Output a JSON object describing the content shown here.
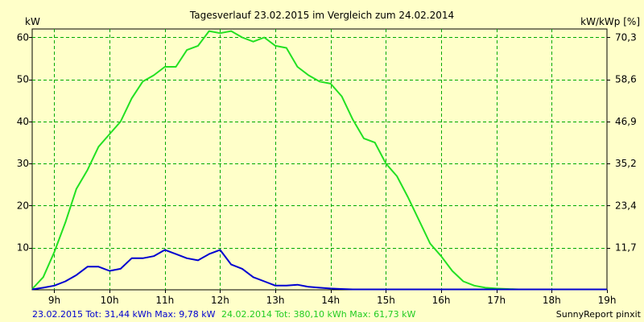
{
  "chart_data": {
    "type": "line",
    "title": "Tagesverlauf 23.02.2015 im Vergleich zum 24.02.2014",
    "ylabel_left": "kW",
    "ylabel_right": "kW/kWp [%]",
    "xlim": [
      8.6,
      19.0
    ],
    "ylim": [
      0,
      62
    ],
    "x_ticks": [
      9,
      10,
      11,
      12,
      13,
      14,
      15,
      16,
      17,
      18,
      19
    ],
    "x_tick_labels": [
      "9h",
      "10h",
      "11h",
      "12h",
      "13h",
      "14h",
      "15h",
      "16h",
      "17h",
      "18h",
      "19h"
    ],
    "y_ticks_left": [
      10,
      20,
      30,
      40,
      50,
      60
    ],
    "y_tick_labels_left": [
      "10",
      "20",
      "30",
      "40",
      "50",
      "60"
    ],
    "y_ticks_right_positions": [
      10,
      20,
      30,
      40,
      50,
      60
    ],
    "y_tick_labels_right": [
      "11,7",
      "23,4",
      "35,2",
      "46,9",
      "58,6",
      "70,3"
    ],
    "grid": true,
    "series": [
      {
        "name": "24.02.2014",
        "color": "#22e022",
        "x": [
          8.6,
          8.8,
          9.0,
          9.2,
          9.4,
          9.6,
          9.8,
          10.0,
          10.2,
          10.4,
          10.6,
          10.8,
          11.0,
          11.2,
          11.4,
          11.6,
          11.8,
          12.0,
          12.2,
          12.4,
          12.6,
          12.8,
          13.0,
          13.2,
          13.4,
          13.6,
          13.8,
          14.0,
          14.2,
          14.4,
          14.6,
          14.8,
          15.0,
          15.2,
          15.4,
          15.6,
          15.8,
          16.0,
          16.2,
          16.4,
          16.6,
          16.8,
          17.0,
          17.2,
          17.4,
          17.6,
          17.8,
          18.0,
          18.2,
          18.4,
          18.6,
          18.8,
          19.0
        ],
        "values": [
          0.2,
          3,
          9,
          16,
          24,
          28.5,
          34,
          37,
          40,
          45.5,
          49.5,
          51,
          53,
          53,
          57,
          58,
          61.5,
          61,
          61.5,
          60,
          59,
          60,
          58,
          57.5,
          53,
          51,
          49.5,
          49,
          46,
          40.5,
          36,
          35,
          30,
          27,
          22,
          16.5,
          11,
          8,
          4.5,
          2,
          1,
          0.5,
          0.3,
          0.2,
          0.1,
          0.1,
          0.1,
          0.1,
          0.1,
          0.1,
          0.1,
          0.1,
          0.1
        ]
      },
      {
        "name": "23.02.2015",
        "color": "#0000d0",
        "x": [
          8.6,
          8.8,
          9.0,
          9.2,
          9.4,
          9.6,
          9.8,
          10.0,
          10.2,
          10.4,
          10.6,
          10.8,
          11.0,
          11.2,
          11.4,
          11.6,
          11.8,
          12.0,
          12.2,
          12.4,
          12.6,
          12.8,
          13.0,
          13.2,
          13.4,
          13.6,
          13.8,
          14.0,
          14.2,
          14.4,
          14.6,
          14.8,
          15.0,
          15.2,
          15.4,
          15.6,
          15.8,
          16.0,
          16.2,
          16.4,
          16.6,
          16.8,
          17.0,
          17.2,
          17.4,
          17.6,
          17.8,
          18.0,
          18.2,
          18.4,
          18.6,
          18.8,
          19.0
        ],
        "values": [
          0.1,
          0.5,
          1,
          2,
          3.5,
          5.5,
          5.5,
          4.5,
          5,
          7.5,
          7.5,
          8,
          9.5,
          8.5,
          7.5,
          7,
          8.5,
          9.5,
          6,
          5,
          3,
          2,
          1,
          1,
          1.2,
          0.7,
          0.5,
          0.3,
          0.2,
          0.1,
          0.1,
          0.1,
          0.1,
          0.1,
          0.1,
          0.1,
          0.1,
          0.1,
          0.1,
          0.1,
          0.1,
          0.1,
          0.1,
          0.1,
          0.1,
          0.1,
          0.1,
          0.1,
          0.1,
          0.1,
          0.1,
          0.1,
          0.1
        ]
      }
    ]
  },
  "footer": {
    "blue_text": "23.02.2015 Tot: 31,44 kWh Max: 9,78 kW",
    "green_text": "24.02.2014 Tot: 380,10 kWh Max: 61,73 kW",
    "credit": "SunnyReport pinxit",
    "blue_color": "#0000d0",
    "green_color": "#22cc22"
  }
}
